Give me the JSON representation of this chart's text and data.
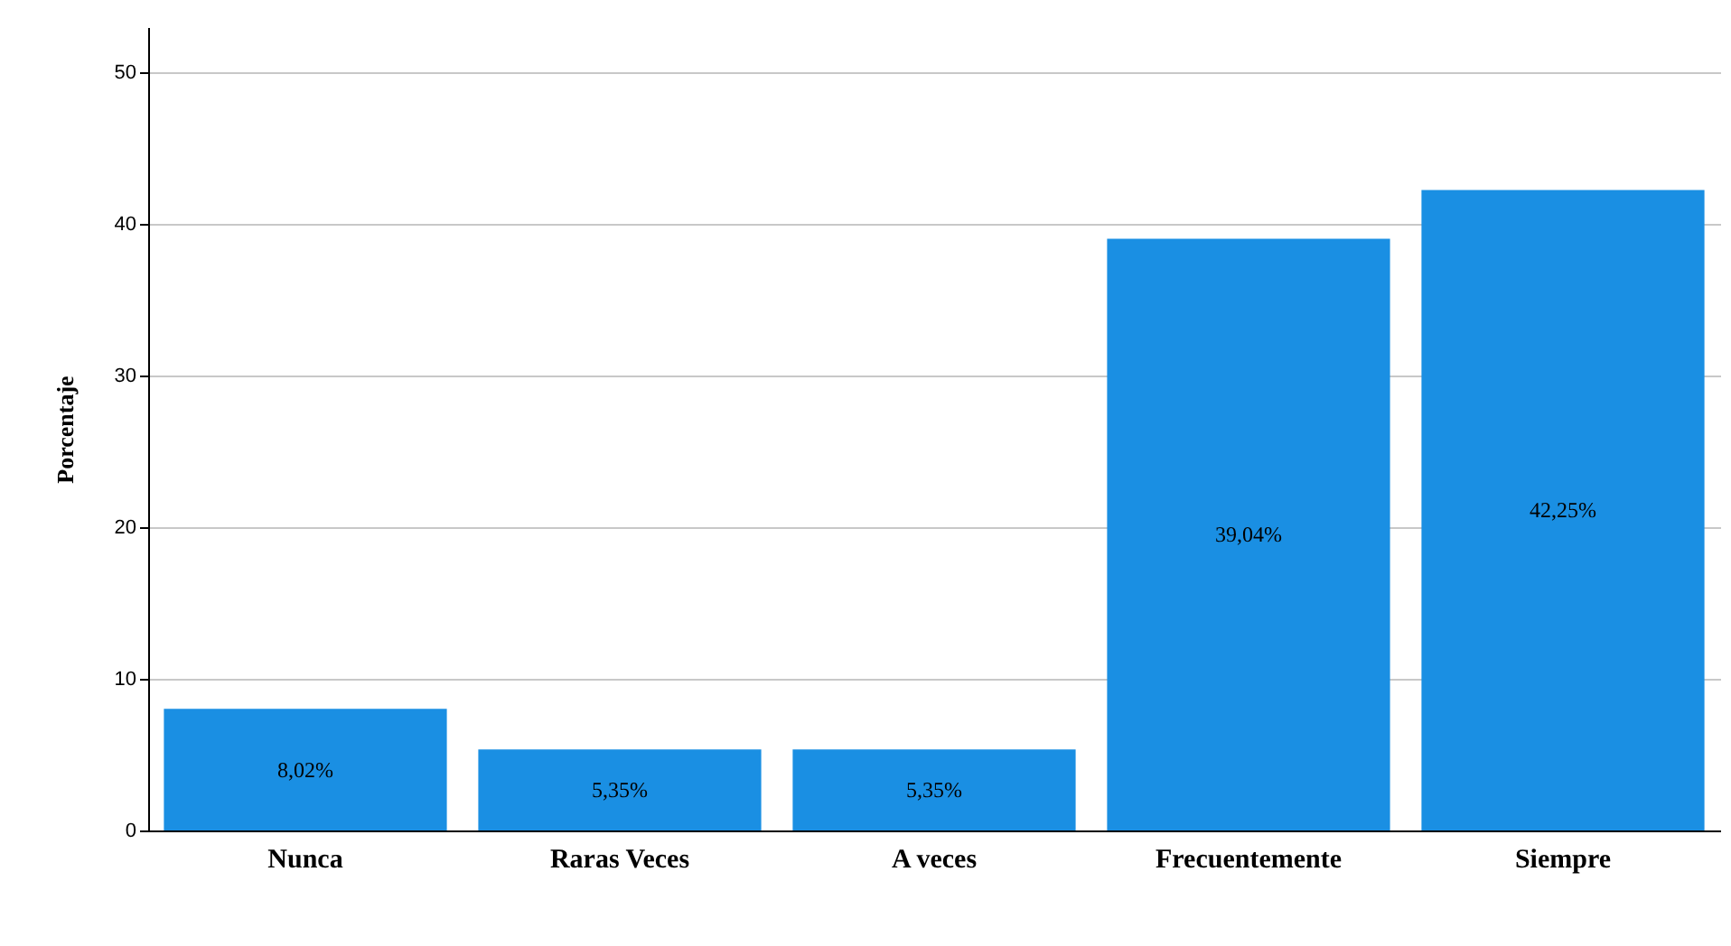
{
  "chart_data": {
    "type": "bar",
    "ylabel": "Porcentaje",
    "categories": [
      "Nunca",
      "Raras Veces",
      "A veces",
      "Frecuentemente",
      "Siempre"
    ],
    "values": [
      8.02,
      5.35,
      5.35,
      39.04,
      42.25
    ],
    "value_labels": [
      "8,02%",
      "5,35%",
      "5,35%",
      "39,04%",
      "42,25%"
    ],
    "color": "#1a8fe3",
    "ylim": [
      0,
      53
    ],
    "yticks": [
      0,
      10,
      20,
      30,
      40,
      50
    ],
    "grid": "y"
  }
}
